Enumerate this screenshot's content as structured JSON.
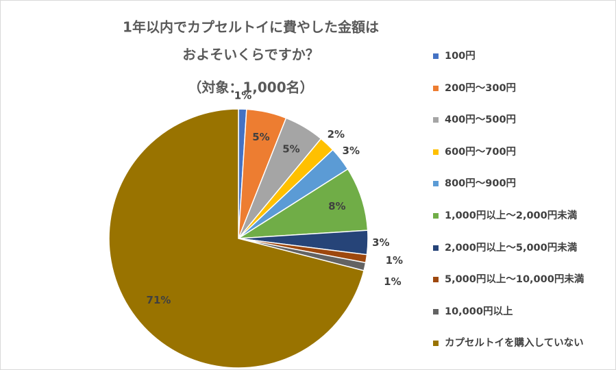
{
  "chart_data": {
    "type": "pie",
    "title": [
      "1年以内でカプセルトイに費やした金額は",
      "およそいくらですか？",
      "（対象：1,000名）"
    ],
    "categories": [
      "100円",
      "200円〜300円",
      "400円〜500円",
      "600円〜700円",
      "800円〜900円",
      "1,000円以上〜2,000円未満",
      "2,000円以上〜5,000円未満",
      "5,000円以上〜10,000円未満",
      "10,000円以上",
      "カプセルトイを購入していない"
    ],
    "values": [
      1,
      5,
      5,
      2,
      3,
      8,
      3,
      1,
      1,
      71
    ],
    "value_labels": [
      "1%",
      "5%",
      "5%",
      "2%",
      "3%",
      "8%",
      "3%",
      "1%",
      "1%",
      "71%"
    ],
    "colors": [
      "#4472c4",
      "#ed7d31",
      "#a5a5a5",
      "#ffc000",
      "#5b9bd5",
      "#70ad47",
      "#264478",
      "#9e480e",
      "#636363",
      "#997300"
    ],
    "legend": "right"
  }
}
